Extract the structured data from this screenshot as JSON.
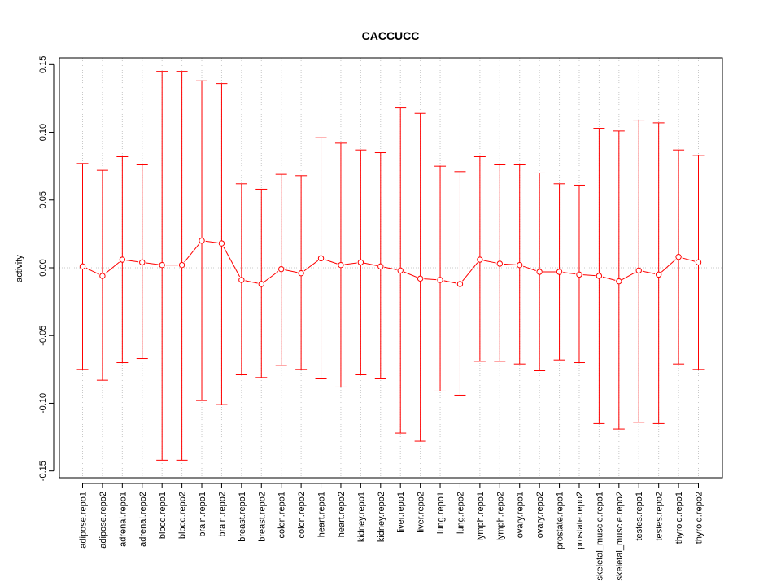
{
  "chart_data": {
    "type": "line",
    "title": "CACCUCC",
    "xlabel": "",
    "ylabel": "activity",
    "ylim": [
      -0.155,
      0.155
    ],
    "yticks": [
      -0.15,
      -0.1,
      -0.05,
      0.0,
      0.05,
      0.1,
      0.15
    ],
    "ytick_labels": [
      "-0.15",
      "-0.10",
      "-0.05",
      "0.00",
      "0.05",
      "0.10",
      "0.15"
    ],
    "grid": true,
    "series_color": "#ff0000",
    "categories": [
      "adipose.repo1",
      "adipose.repo2",
      "adrenal.repo1",
      "adrenal.repo2",
      "blood.repo1",
      "blood.repo2",
      "brain.repo1",
      "brain.repo2",
      "breast.repo1",
      "breast.repo2",
      "colon.repo1",
      "colon.repo2",
      "heart.repo1",
      "heart.repo2",
      "kidney.repo1",
      "kidney.repo2",
      "liver.repo1",
      "liver.repo2",
      "lung.repo1",
      "lung.repo2",
      "lymph.repo1",
      "lymph.repo2",
      "ovary.repo1",
      "ovary.repo2",
      "prostate.repo1",
      "prostate.repo2",
      "skeletal_muscle.repo1",
      "skeletal_muscle.repo2",
      "testes.repo1",
      "testes.repo2",
      "thyroid.repo1",
      "thyroid.repo2"
    ],
    "values": [
      0.001,
      -0.006,
      0.006,
      0.004,
      0.002,
      0.002,
      0.02,
      0.018,
      -0.009,
      -0.012,
      -0.001,
      -0.004,
      0.007,
      0.002,
      0.004,
      0.001,
      -0.002,
      -0.008,
      -0.009,
      -0.012,
      0.006,
      0.003,
      0.002,
      -0.003,
      -0.003,
      -0.005,
      -0.006,
      -0.01,
      -0.002,
      -0.005,
      0.008,
      0.004
    ],
    "upper": [
      0.077,
      0.072,
      0.082,
      0.076,
      0.145,
      0.145,
      0.138,
      0.136,
      0.062,
      0.058,
      0.069,
      0.068,
      0.096,
      0.092,
      0.087,
      0.085,
      0.118,
      0.114,
      0.075,
      0.071,
      0.082,
      0.076,
      0.076,
      0.07,
      0.062,
      0.061,
      0.103,
      0.101,
      0.109,
      0.107,
      0.087,
      0.083
    ],
    "lower": [
      -0.075,
      -0.083,
      -0.07,
      -0.067,
      -0.142,
      -0.142,
      -0.098,
      -0.101,
      -0.079,
      -0.081,
      -0.072,
      -0.075,
      -0.082,
      -0.088,
      -0.079,
      -0.082,
      -0.122,
      -0.128,
      -0.091,
      -0.094,
      -0.069,
      -0.069,
      -0.071,
      -0.076,
      -0.068,
      -0.07,
      -0.115,
      -0.119,
      -0.114,
      -0.115,
      -0.071,
      -0.075
    ]
  }
}
